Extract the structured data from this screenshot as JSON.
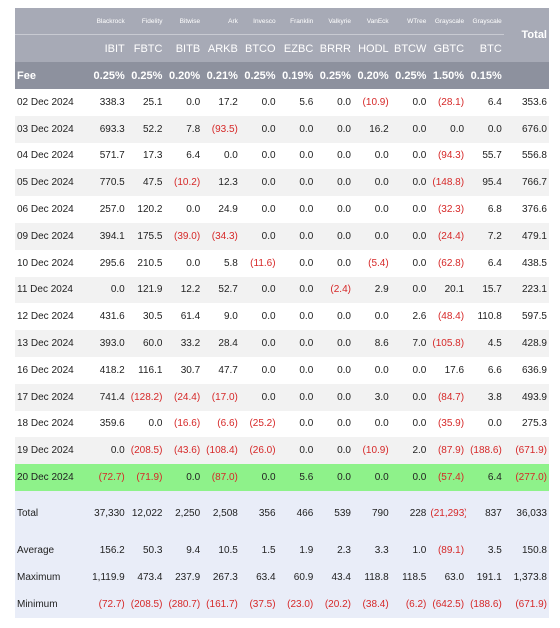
{
  "header": {
    "issuers": [
      "Blackrock",
      "Fidelity",
      "Bitwise",
      "Ark",
      "Invesco",
      "Franklin",
      "Valkyrie",
      "VanEck",
      "WTree",
      "Grayscale",
      "Grayscale"
    ],
    "total_label": "Total",
    "tickers": [
      "IBIT",
      "FBTC",
      "BITB",
      "ARKB",
      "BTCO",
      "EZBC",
      "BRRR",
      "HODL",
      "BTCW",
      "GBTC",
      "BTC"
    ],
    "fee_label": "Fee",
    "fees": [
      "0.25%",
      "0.25%",
      "0.20%",
      "0.21%",
      "0.25%",
      "0.19%",
      "0.25%",
      "0.20%",
      "0.25%",
      "1.50%",
      "0.15%"
    ]
  },
  "rows": [
    {
      "date": "02 Dec 2024",
      "values": [
        "338.3",
        "25.1",
        "0.0",
        "17.2",
        "0.0",
        "5.6",
        "0.0",
        "(10.9)",
        "0.0",
        "(28.1)",
        "6.4",
        "353.6"
      ]
    },
    {
      "date": "03 Dec 2024",
      "values": [
        "693.3",
        "52.2",
        "7.8",
        "(93.5)",
        "0.0",
        "0.0",
        "0.0",
        "16.2",
        "0.0",
        "0.0",
        "0.0",
        "676.0"
      ]
    },
    {
      "date": "04 Dec 2024",
      "values": [
        "571.7",
        "17.3",
        "6.4",
        "0.0",
        "0.0",
        "0.0",
        "0.0",
        "0.0",
        "0.0",
        "(94.3)",
        "55.7",
        "556.8"
      ]
    },
    {
      "date": "05 Dec 2024",
      "values": [
        "770.5",
        "47.5",
        "(10.2)",
        "12.3",
        "0.0",
        "0.0",
        "0.0",
        "0.0",
        "0.0",
        "(148.8)",
        "95.4",
        "766.7"
      ]
    },
    {
      "date": "06 Dec 2024",
      "values": [
        "257.0",
        "120.2",
        "0.0",
        "24.9",
        "0.0",
        "0.0",
        "0.0",
        "0.0",
        "0.0",
        "(32.3)",
        "6.8",
        "376.6"
      ]
    },
    {
      "date": "09 Dec 2024",
      "values": [
        "394.1",
        "175.5",
        "(39.0)",
        "(34.3)",
        "0.0",
        "0.0",
        "0.0",
        "0.0",
        "0.0",
        "(24.4)",
        "7.2",
        "479.1"
      ]
    },
    {
      "date": "10 Dec 2024",
      "values": [
        "295.6",
        "210.5",
        "0.0",
        "5.8",
        "(11.6)",
        "0.0",
        "0.0",
        "(5.4)",
        "0.0",
        "(62.8)",
        "6.4",
        "438.5"
      ]
    },
    {
      "date": "11 Dec 2024",
      "values": [
        "0.0",
        "121.9",
        "12.2",
        "52.7",
        "0.0",
        "0.0",
        "(2.4)",
        "2.9",
        "0.0",
        "20.1",
        "15.7",
        "223.1"
      ]
    },
    {
      "date": "12 Dec 2024",
      "values": [
        "431.6",
        "30.5",
        "61.4",
        "9.0",
        "0.0",
        "0.0",
        "0.0",
        "0.0",
        "2.6",
        "(48.4)",
        "110.8",
        "597.5"
      ]
    },
    {
      "date": "13 Dec 2024",
      "values": [
        "393.0",
        "60.0",
        "33.2",
        "28.4",
        "0.0",
        "0.0",
        "0.0",
        "8.6",
        "7.0",
        "(105.8)",
        "4.5",
        "428.9"
      ]
    },
    {
      "date": "16 Dec 2024",
      "values": [
        "418.2",
        "116.1",
        "30.7",
        "47.7",
        "0.0",
        "0.0",
        "0.0",
        "0.0",
        "0.0",
        "17.6",
        "6.6",
        "636.9"
      ]
    },
    {
      "date": "17 Dec 2024",
      "values": [
        "741.4",
        "(128.2)",
        "(24.4)",
        "(17.0)",
        "0.0",
        "0.0",
        "0.0",
        "3.0",
        "0.0",
        "(84.7)",
        "3.8",
        "493.9"
      ]
    },
    {
      "date": "18 Dec 2024",
      "values": [
        "359.6",
        "0.0",
        "(16.6)",
        "(6.6)",
        "(25.2)",
        "0.0",
        "0.0",
        "0.0",
        "0.0",
        "(35.9)",
        "0.0",
        "275.3"
      ]
    },
    {
      "date": "19 Dec 2024",
      "values": [
        "0.0",
        "(208.5)",
        "(43.6)",
        "(108.4)",
        "(26.0)",
        "0.0",
        "0.0",
        "(10.9)",
        "2.0",
        "(87.9)",
        "(188.6)",
        "(671.9)"
      ]
    },
    {
      "date": "20 Dec 2024",
      "highlight": true,
      "values": [
        "(72.7)",
        "(71.9)",
        "0.0",
        "(87.0)",
        "0.0",
        "5.6",
        "0.0",
        "0.0",
        "0.0",
        "(57.4)",
        "6.4",
        "(277.0)"
      ]
    }
  ],
  "summary": [
    {
      "label": "Total",
      "values": [
        "37,330",
        "12,022",
        "2,250",
        "2,508",
        "356",
        "466",
        "539",
        "790",
        "228",
        "(21,293)",
        "837",
        "36,033"
      ]
    },
    {
      "label": "Average",
      "values": [
        "156.2",
        "50.3",
        "9.4",
        "10.5",
        "1.5",
        "1.9",
        "2.3",
        "3.3",
        "1.0",
        "(89.1)",
        "3.5",
        "150.8"
      ]
    },
    {
      "label": "Maximum",
      "values": [
        "1,119.9",
        "473.4",
        "237.9",
        "267.3",
        "63.4",
        "60.9",
        "43.4",
        "118.8",
        "118.5",
        "63.0",
        "191.1",
        "1,373.8"
      ]
    },
    {
      "label": "Minimum",
      "values": [
        "(72.7)",
        "(208.5)",
        "(280.7)",
        "(161.7)",
        "(37.5)",
        "(23.0)",
        "(20.2)",
        "(38.4)",
        "(6.2)",
        "(642.5)",
        "(188.6)",
        "(671.9)"
      ]
    }
  ]
}
